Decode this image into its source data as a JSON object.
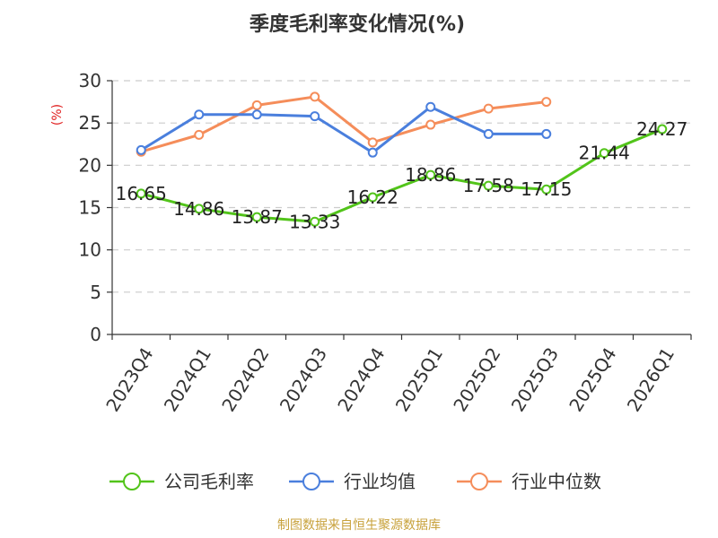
{
  "chart_data": {
    "type": "line",
    "title": "季度毛利率变化情况(%)",
    "ylabel": "(%)",
    "ylabel_color": "#e02020",
    "categories": [
      "2023Q4",
      "2024Q1",
      "2024Q2",
      "2024Q3",
      "2024Q4",
      "2025Q1",
      "2025Q2",
      "2025Q3",
      "2025Q4",
      "2026Q1"
    ],
    "ylim": [
      0,
      30
    ],
    "yticks": [
      0,
      5,
      10,
      15,
      20,
      25,
      30
    ],
    "grid": true,
    "legend_position": "bottom",
    "series": [
      {
        "name": "公司毛利率",
        "color": "#52c41a",
        "show_labels": true,
        "values": [
          16.65,
          14.86,
          13.87,
          13.33,
          16.22,
          18.86,
          17.58,
          17.15,
          21.44,
          24.27
        ]
      },
      {
        "name": "行业均值",
        "color": "#4a7fdd",
        "show_labels": false,
        "values": [
          21.8,
          26.0,
          26.0,
          25.8,
          21.5,
          26.9,
          23.7,
          23.7,
          null,
          null
        ]
      },
      {
        "name": "行业中位数",
        "color": "#f58d5a",
        "show_labels": false,
        "values": [
          21.6,
          23.6,
          27.1,
          28.1,
          22.7,
          24.8,
          26.7,
          27.5,
          null,
          null
        ]
      }
    ]
  },
  "source": {
    "text": "制图数据来自恒生聚源数据库",
    "color": "#c8a23c"
  }
}
